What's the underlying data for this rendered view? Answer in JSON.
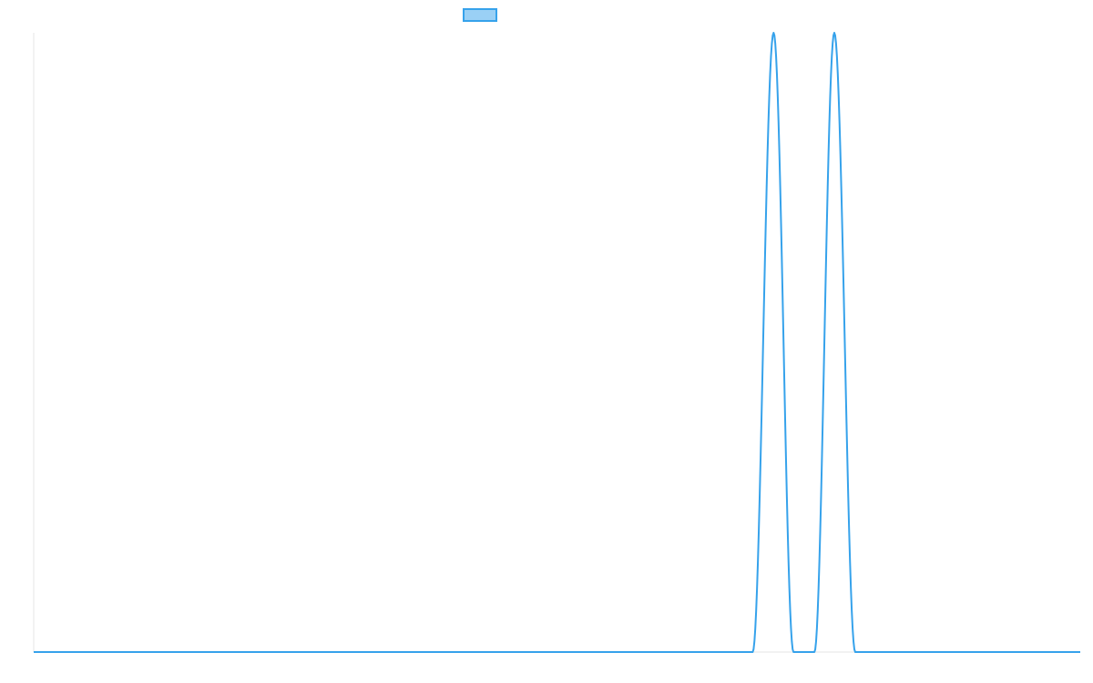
{
  "colors": {
    "line": "#36a2eb",
    "fill": "#9ad0f5",
    "axis": "#e5e5e5"
  },
  "chart_data": {
    "type": "line",
    "title": "",
    "xlabel": "",
    "ylabel": "",
    "legend": {
      "position": "top",
      "entries": [
        {
          "label": ""
        }
      ]
    },
    "grid": false,
    "xlim": [
      0,
      1000
    ],
    "ylim": [
      0,
      1
    ],
    "series": [
      {
        "points": [
          [
            0,
            0
          ],
          [
            687,
            0
          ],
          [
            707,
            1
          ],
          [
            726,
            0
          ],
          [
            746,
            0
          ],
          [
            765,
            1
          ],
          [
            785,
            0
          ],
          [
            1000,
            0
          ]
        ]
      }
    ]
  }
}
